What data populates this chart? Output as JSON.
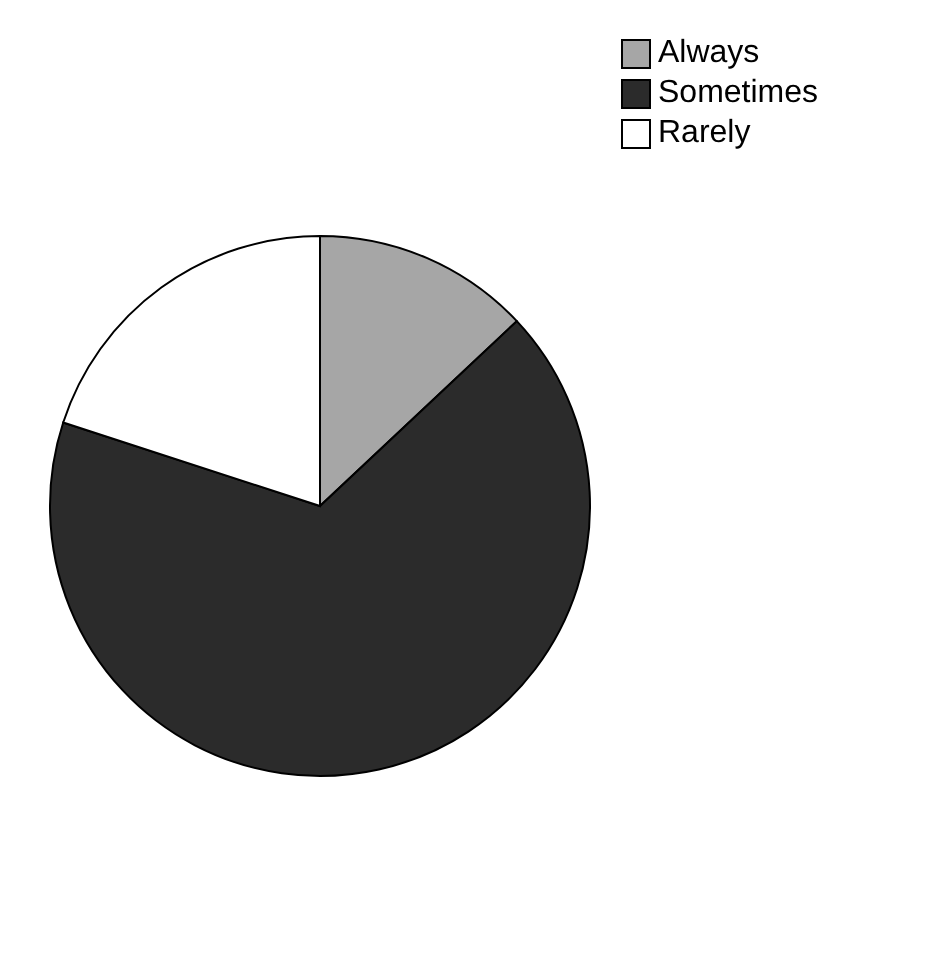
{
  "chart_data": {
    "type": "pie",
    "categories": [
      "Always",
      "Sometimes",
      "Rarely"
    ],
    "values": [
      13,
      67,
      20
    ],
    "colors": [
      "#a6a6a6",
      "#2b2b2b",
      "#ffffff"
    ],
    "legend": "top right"
  }
}
